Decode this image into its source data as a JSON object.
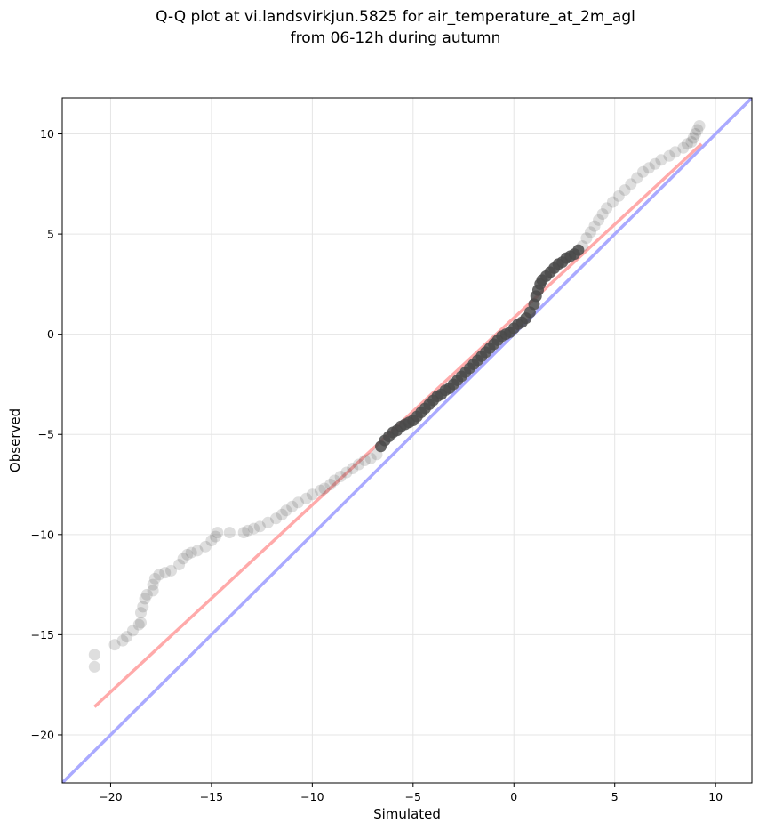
{
  "chart_data": {
    "type": "scatter",
    "title_lines": [
      "Q-Q plot at vi.landsvirkjun.5825 for air_temperature_at_2m_agl",
      "from 06-12h during autumn"
    ],
    "xlabel": "Simulated",
    "ylabel": "Observed",
    "xlim": [
      -22.4,
      11.8
    ],
    "ylim": [
      -22.4,
      11.8
    ],
    "xticks": [
      -20,
      -15,
      -10,
      -5,
      0,
      5,
      10
    ],
    "yticks": [
      -20,
      -15,
      -10,
      -5,
      0,
      5,
      10
    ],
    "grid": true,
    "identity_line_color": "#aaaaff",
    "fit_line": {
      "color": "#ffaaaa",
      "points": [
        [
          -20.8,
          -18.6
        ],
        [
          9.3,
          9.5
        ]
      ]
    },
    "point_color": "#4a4a4a",
    "series": [
      {
        "role": "tail",
        "values": [
          [
            -20.8,
            -16.6
          ],
          [
            -20.8,
            -16.0
          ],
          [
            -19.8,
            -15.5
          ],
          [
            -19.4,
            -15.3
          ],
          [
            -19.2,
            -15.1
          ],
          [
            -18.9,
            -14.8
          ],
          [
            -18.6,
            -14.5
          ],
          [
            -18.5,
            -14.4
          ],
          [
            -18.5,
            -13.9
          ],
          [
            -18.4,
            -13.6
          ],
          [
            -18.3,
            -13.2
          ],
          [
            -18.2,
            -13.0
          ],
          [
            -17.9,
            -12.8
          ],
          [
            -17.9,
            -12.5
          ],
          [
            -17.8,
            -12.2
          ],
          [
            -17.6,
            -12.0
          ],
          [
            -17.3,
            -11.9
          ],
          [
            -17.0,
            -11.8
          ],
          [
            -16.6,
            -11.5
          ],
          [
            -16.4,
            -11.2
          ],
          [
            -16.2,
            -11.0
          ],
          [
            -16.0,
            -10.9
          ],
          [
            -15.7,
            -10.8
          ],
          [
            -15.3,
            -10.6
          ],
          [
            -15.0,
            -10.3
          ],
          [
            -14.8,
            -10.1
          ],
          [
            -14.7,
            -9.9
          ],
          [
            -14.1,
            -9.9
          ],
          [
            -13.4,
            -9.9
          ],
          [
            -13.2,
            -9.8
          ],
          [
            -12.9,
            -9.7
          ],
          [
            -12.6,
            -9.6
          ],
          [
            -12.2,
            -9.4
          ],
          [
            -11.8,
            -9.2
          ],
          [
            -11.5,
            -9.0
          ],
          [
            -11.3,
            -8.8
          ],
          [
            -11.0,
            -8.6
          ],
          [
            -10.7,
            -8.4
          ],
          [
            -10.3,
            -8.2
          ],
          [
            -10.0,
            -8.0
          ],
          [
            -9.6,
            -7.8
          ],
          [
            -9.4,
            -7.7
          ],
          [
            -9.1,
            -7.5
          ],
          [
            -8.9,
            -7.3
          ],
          [
            -8.6,
            -7.1
          ],
          [
            -8.3,
            -6.9
          ],
          [
            -8.0,
            -6.7
          ],
          [
            -7.7,
            -6.5
          ],
          [
            -7.4,
            -6.3
          ],
          [
            -7.1,
            -6.2
          ],
          [
            -6.8,
            -6.0
          ],
          [
            3.4,
            4.4
          ],
          [
            3.6,
            4.8
          ],
          [
            3.8,
            5.1
          ],
          [
            4.0,
            5.4
          ],
          [
            4.2,
            5.7
          ],
          [
            4.4,
            6.0
          ],
          [
            4.6,
            6.3
          ],
          [
            4.9,
            6.6
          ],
          [
            5.2,
            6.9
          ],
          [
            5.5,
            7.2
          ],
          [
            5.8,
            7.5
          ],
          [
            6.1,
            7.8
          ],
          [
            6.4,
            8.1
          ],
          [
            6.7,
            8.3
          ],
          [
            7.0,
            8.5
          ],
          [
            7.3,
            8.7
          ],
          [
            7.7,
            8.9
          ],
          [
            8.0,
            9.1
          ],
          [
            8.4,
            9.3
          ],
          [
            8.6,
            9.5
          ],
          [
            8.8,
            9.6
          ],
          [
            8.9,
            9.8
          ],
          [
            9.0,
            10.0
          ],
          [
            9.1,
            10.2
          ],
          [
            9.2,
            10.4
          ]
        ]
      },
      {
        "role": "body",
        "values": [
          [
            -6.6,
            -5.6
          ],
          [
            -6.4,
            -5.3
          ],
          [
            -6.2,
            -5.1
          ],
          [
            -6.0,
            -4.9
          ],
          [
            -5.8,
            -4.8
          ],
          [
            -5.6,
            -4.6
          ],
          [
            -5.4,
            -4.5
          ],
          [
            -5.2,
            -4.4
          ],
          [
            -5.0,
            -4.3
          ],
          [
            -4.8,
            -4.1
          ],
          [
            -4.6,
            -3.9
          ],
          [
            -4.4,
            -3.7
          ],
          [
            -4.2,
            -3.5
          ],
          [
            -4.0,
            -3.3
          ],
          [
            -3.8,
            -3.1
          ],
          [
            -3.6,
            -3.0
          ],
          [
            -3.4,
            -2.8
          ],
          [
            -3.2,
            -2.7
          ],
          [
            -3.0,
            -2.5
          ],
          [
            -2.8,
            -2.3
          ],
          [
            -2.6,
            -2.1
          ],
          [
            -2.4,
            -1.9
          ],
          [
            -2.2,
            -1.7
          ],
          [
            -2.0,
            -1.5
          ],
          [
            -1.8,
            -1.3
          ],
          [
            -1.6,
            -1.1
          ],
          [
            -1.4,
            -0.9
          ],
          [
            -1.2,
            -0.7
          ],
          [
            -1.0,
            -0.5
          ],
          [
            -0.8,
            -0.3
          ],
          [
            -0.6,
            -0.1
          ],
          [
            -0.4,
            0.0
          ],
          [
            -0.2,
            0.1
          ],
          [
            0.0,
            0.3
          ],
          [
            0.2,
            0.5
          ],
          [
            0.4,
            0.6
          ],
          [
            0.6,
            0.8
          ],
          [
            0.8,
            1.1
          ],
          [
            1.0,
            1.5
          ],
          [
            1.1,
            1.9
          ],
          [
            1.2,
            2.2
          ],
          [
            1.3,
            2.5
          ],
          [
            1.4,
            2.7
          ],
          [
            1.6,
            2.9
          ],
          [
            1.8,
            3.1
          ],
          [
            2.0,
            3.3
          ],
          [
            2.2,
            3.5
          ],
          [
            2.4,
            3.6
          ],
          [
            2.6,
            3.8
          ],
          [
            2.8,
            3.9
          ],
          [
            3.0,
            4.0
          ],
          [
            3.2,
            4.2
          ]
        ]
      }
    ]
  }
}
